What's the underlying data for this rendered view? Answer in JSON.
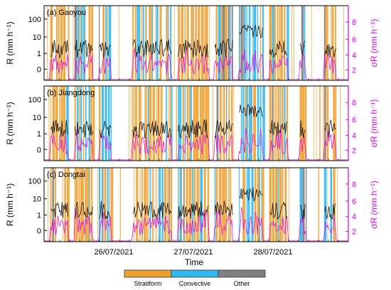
{
  "chart_data": {
    "type": "area",
    "x_axis": {
      "label": "Time",
      "tick_labels": [
        "26/07/2021",
        "27/07/2021",
        "28/07/2021"
      ]
    },
    "left_axis": {
      "label": "R (mm h⁻¹)",
      "scale": "log",
      "tick_labels": [
        "100",
        "10",
        "1",
        "0"
      ]
    },
    "right_axis": {
      "label": "σR (mm h⁻¹)",
      "tick_labels": [
        "8",
        "6",
        "4",
        "2"
      ],
      "color": "#e000e0"
    },
    "panels": [
      {
        "label": "(a) Gaoyou"
      },
      {
        "label": "(b) Jiangdong"
      },
      {
        "label": "(c) Dongtai"
      }
    ],
    "legend": {
      "placement": "bottom",
      "items": [
        {
          "label": "Stratiform",
          "color": "#f0a030"
        },
        {
          "label": "Convective",
          "color": "#30b8f0"
        },
        {
          "label": "Other",
          "color": "#808080"
        }
      ]
    },
    "series_colors": {
      "rain_rate": "#000000",
      "sigma_r": "#e000e0"
    }
  }
}
